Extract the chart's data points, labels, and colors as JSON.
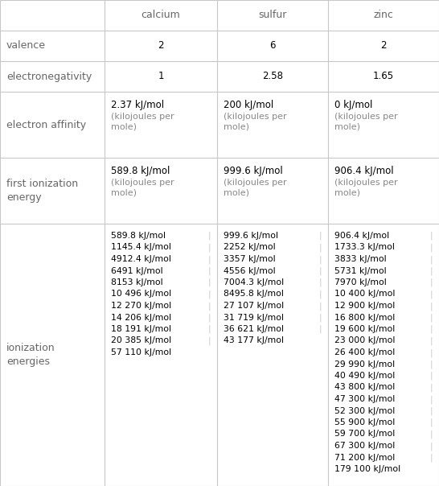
{
  "headers": [
    "",
    "calcium",
    "sulfur",
    "zinc"
  ],
  "row_labels": [
    "valence",
    "electronegativity",
    "electron affinity",
    "first ionization\nenergy",
    "ionization\nenergies"
  ],
  "valence": [
    "2",
    "6",
    "2"
  ],
  "electronegativity": [
    "1",
    "2.58",
    "1.65"
  ],
  "electron_affinity": [
    "2.37 kJ/mol\n(kilojoules per\nmole)",
    "200 kJ/mol\n(kilojoules per\nmole)",
    "0 kJ/mol\n(kilojoules per\nmole)"
  ],
  "first_ionization": [
    "589.8 kJ/mol\n(kilojoules per\nmole)",
    "999.6 kJ/mol\n(kilojoules per\nmole)",
    "906.4 kJ/mol\n(kilojoules per\nmole)"
  ],
  "ionization_ca": [
    "589.8 kJ/mol",
    "1145.4 kJ/mol",
    "4912.4 kJ/mol",
    "6491 kJ/mol",
    "8153 kJ/mol",
    "10 496 kJ/mol",
    "12 270 kJ/mol",
    "14 206 kJ/mol",
    "18 191 kJ/mol",
    "20 385 kJ/mol",
    "57 110 kJ/mol"
  ],
  "ionization_s": [
    "999.6 kJ/mol",
    "2252 kJ/mol",
    "3357 kJ/mol",
    "4556 kJ/mol",
    "7004.3 kJ/mol",
    "8495.8 kJ/mol",
    "27 107 kJ/mol",
    "31 719 kJ/mol",
    "36 621 kJ/mol",
    "43 177 kJ/mol"
  ],
  "ionization_zn": [
    "906.4 kJ/mol",
    "1733.3 kJ/mol",
    "3833 kJ/mol",
    "5731 kJ/mol",
    "7970 kJ/mol",
    "10 400 kJ/mol",
    "12 900 kJ/mol",
    "16 800 kJ/mol",
    "19 600 kJ/mol",
    "23 000 kJ/mol",
    "26 400 kJ/mol",
    "29 990 kJ/mol",
    "40 490 kJ/mol",
    "43 800 kJ/mol",
    "47 300 kJ/mol",
    "52 300 kJ/mol",
    "55 900 kJ/mol",
    "59 700 kJ/mol",
    "67 300 kJ/mol",
    "71 200 kJ/mol",
    "179 100 kJ/mol"
  ],
  "bg_color": "#ffffff",
  "grid_color": "#c8c8c8",
  "header_color": "#666666",
  "label_color": "#666666",
  "value_color": "#000000",
  "sub_color": "#888888",
  "figw": 5.46,
  "figh": 6.04,
  "dpi": 100
}
